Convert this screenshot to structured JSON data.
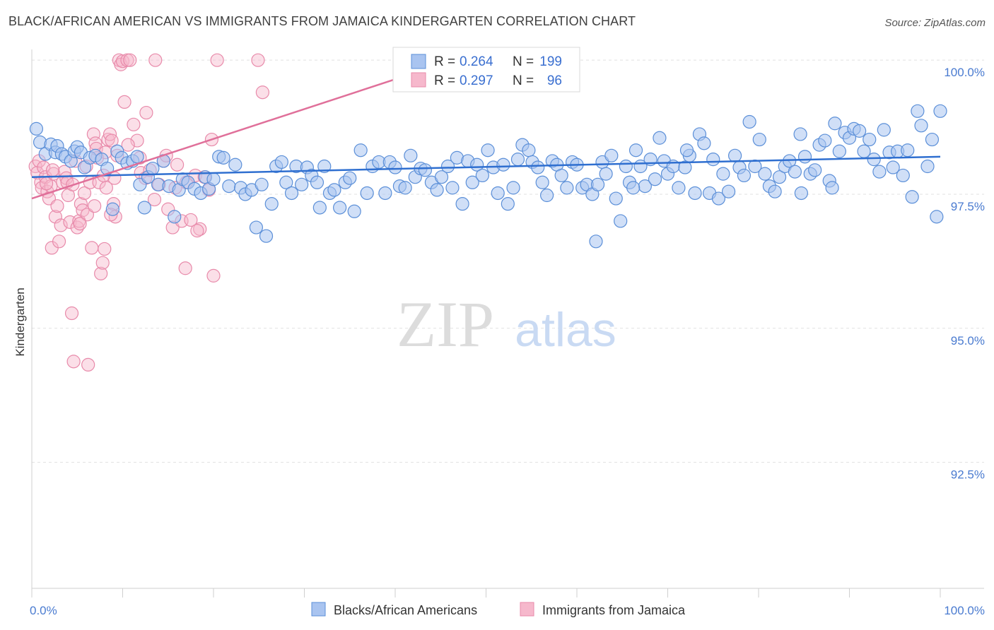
{
  "title": "BLACK/AFRICAN AMERICAN VS IMMIGRANTS FROM JAMAICA KINDERGARTEN CORRELATION CHART",
  "source": "Source: ZipAtlas.com",
  "watermark": {
    "zip": "ZIP",
    "atlas": "atlas"
  },
  "legend": {
    "r_label": "R =",
    "n_label": "N =",
    "rows": [
      {
        "r": "0.264",
        "n": "199"
      },
      {
        "r": "0.297",
        "n": "96"
      }
    ]
  },
  "chart_data": {
    "type": "scatter",
    "title": "BLACK/AFRICAN AMERICAN VS IMMIGRANTS FROM JAMAICA KINDERGARTEN CORRELATION CHART",
    "xlabel": "",
    "ylabel": "Kindergarten",
    "xlim": [
      0,
      100
    ],
    "ylim": [
      90.15,
      100.2
    ],
    "y_ticks": [
      {
        "value": 100.0,
        "label": "100.0%"
      },
      {
        "value": 97.5,
        "label": "97.5%"
      },
      {
        "value": 95.0,
        "label": "95.0%"
      },
      {
        "value": 92.5,
        "label": "92.5%"
      }
    ],
    "x_ticks": [
      {
        "value": 0,
        "label": "0.0%"
      },
      {
        "value": 100,
        "label": "100.0%"
      }
    ],
    "colors": {
      "blue_fill": "#a9c4f0",
      "blue_stroke": "#5b8fd8",
      "blue_line": "#2f6fd0",
      "pink_fill": "#f6b8cc",
      "pink_stroke": "#e88aaa",
      "pink_line": "#e0709a",
      "axis_text": "#4a7bd0",
      "grid": "#e0e0e0"
    },
    "series": [
      {
        "name": "Blacks/African Americans",
        "trend": {
          "x": [
            0,
            100
          ],
          "y": [
            97.82,
            98.2
          ]
        },
        "points": [
          [
            0.5,
            98.72
          ],
          [
            0.9,
            98.47
          ],
          [
            1.5,
            98.25
          ],
          [
            2.1,
            98.43
          ],
          [
            2.6,
            98.28
          ],
          [
            2.8,
            98.4
          ],
          [
            3.3,
            98.25
          ],
          [
            3.7,
            98.2
          ],
          [
            4.3,
            98.12
          ],
          [
            4.7,
            98.3
          ],
          [
            5.0,
            98.38
          ],
          [
            5.4,
            98.28
          ],
          [
            5.8,
            98.0
          ],
          [
            6.4,
            98.18
          ],
          [
            7.0,
            98.22
          ],
          [
            7.7,
            98.15
          ],
          [
            8.3,
            97.98
          ],
          [
            8.9,
            97.22
          ],
          [
            9.4,
            98.3
          ],
          [
            9.9,
            98.18
          ],
          [
            10.5,
            98.08
          ],
          [
            11.1,
            98.12
          ],
          [
            11.6,
            98.2
          ],
          [
            11.9,
            97.68
          ],
          [
            12.4,
            97.25
          ],
          [
            12.8,
            97.82
          ],
          [
            13.3,
            97.98
          ],
          [
            13.9,
            97.68
          ],
          [
            14.5,
            98.12
          ],
          [
            15.1,
            97.65
          ],
          [
            15.7,
            97.08
          ],
          [
            16.2,
            97.58
          ],
          [
            16.6,
            97.78
          ],
          [
            17.2,
            97.72
          ],
          [
            17.9,
            97.6
          ],
          [
            18.6,
            97.52
          ],
          [
            19.1,
            97.82
          ],
          [
            19.5,
            97.6
          ],
          [
            20.0,
            97.78
          ],
          [
            20.6,
            98.2
          ],
          [
            21.1,
            98.18
          ],
          [
            21.7,
            97.65
          ],
          [
            22.4,
            98.05
          ],
          [
            23.0,
            97.62
          ],
          [
            23.5,
            97.5
          ],
          [
            24.2,
            97.58
          ],
          [
            24.7,
            96.88
          ],
          [
            25.3,
            97.68
          ],
          [
            25.8,
            96.72
          ],
          [
            26.4,
            97.32
          ],
          [
            26.9,
            98.02
          ],
          [
            27.5,
            98.1
          ],
          [
            28.0,
            97.72
          ],
          [
            28.6,
            97.52
          ],
          [
            29.1,
            98.02
          ],
          [
            29.7,
            97.68
          ],
          [
            30.3,
            98.0
          ],
          [
            30.8,
            97.85
          ],
          [
            31.4,
            97.72
          ],
          [
            31.7,
            97.25
          ],
          [
            32.2,
            98.02
          ],
          [
            32.8,
            97.52
          ],
          [
            33.3,
            97.58
          ],
          [
            33.9,
            97.25
          ],
          [
            34.5,
            97.72
          ],
          [
            35.0,
            97.8
          ],
          [
            35.5,
            97.18
          ],
          [
            36.2,
            98.32
          ],
          [
            36.9,
            97.52
          ],
          [
            37.5,
            98.02
          ],
          [
            38.2,
            98.1
          ],
          [
            38.9,
            97.52
          ],
          [
            39.4,
            98.1
          ],
          [
            40.0,
            98.0
          ],
          [
            40.5,
            97.65
          ],
          [
            41.1,
            97.62
          ],
          [
            41.7,
            98.22
          ],
          [
            42.2,
            97.82
          ],
          [
            42.8,
            97.98
          ],
          [
            43.3,
            97.95
          ],
          [
            44.0,
            97.72
          ],
          [
            44.6,
            97.58
          ],
          [
            45.1,
            97.82
          ],
          [
            45.8,
            98.02
          ],
          [
            46.3,
            97.62
          ],
          [
            46.8,
            98.18
          ],
          [
            47.4,
            97.32
          ],
          [
            48.0,
            98.12
          ],
          [
            48.5,
            97.72
          ],
          [
            49.0,
            98.05
          ],
          [
            49.6,
            97.85
          ],
          [
            50.2,
            98.32
          ],
          [
            50.8,
            98.0
          ],
          [
            51.3,
            97.52
          ],
          [
            51.9,
            98.05
          ],
          [
            52.4,
            97.32
          ],
          [
            53.0,
            97.62
          ],
          [
            53.5,
            98.15
          ],
          [
            54.0,
            98.42
          ],
          [
            54.7,
            98.32
          ],
          [
            55.1,
            98.1
          ],
          [
            55.7,
            98.0
          ],
          [
            56.2,
            97.72
          ],
          [
            56.7,
            97.48
          ],
          [
            57.3,
            98.12
          ],
          [
            57.8,
            98.05
          ],
          [
            58.3,
            97.85
          ],
          [
            58.9,
            97.62
          ],
          [
            59.5,
            98.1
          ],
          [
            60.0,
            98.05
          ],
          [
            60.6,
            97.62
          ],
          [
            61.1,
            97.68
          ],
          [
            61.7,
            97.5
          ],
          [
            62.3,
            97.68
          ],
          [
            62.8,
            98.1
          ],
          [
            63.2,
            97.88
          ],
          [
            63.8,
            98.22
          ],
          [
            64.3,
            97.42
          ],
          [
            64.8,
            97.0
          ],
          [
            65.4,
            98.02
          ],
          [
            65.8,
            97.72
          ],
          [
            66.5,
            98.32
          ],
          [
            67.0,
            98.02
          ],
          [
            67.5,
            97.65
          ],
          [
            68.1,
            98.15
          ],
          [
            68.6,
            97.78
          ],
          [
            69.1,
            98.55
          ],
          [
            69.6,
            98.12
          ],
          [
            70.0,
            97.88
          ],
          [
            70.6,
            98.02
          ],
          [
            71.2,
            97.62
          ],
          [
            71.9,
            98.0
          ],
          [
            72.4,
            98.22
          ],
          [
            73.0,
            97.52
          ],
          [
            73.5,
            98.62
          ],
          [
            74.0,
            98.45
          ],
          [
            74.6,
            97.52
          ],
          [
            75.0,
            98.15
          ],
          [
            75.6,
            97.42
          ],
          [
            76.1,
            97.88
          ],
          [
            76.7,
            97.55
          ],
          [
            77.4,
            98.22
          ],
          [
            77.9,
            98.0
          ],
          [
            78.4,
            97.85
          ],
          [
            79.0,
            98.85
          ],
          [
            79.6,
            98.02
          ],
          [
            80.1,
            98.52
          ],
          [
            80.7,
            97.88
          ],
          [
            81.2,
            97.65
          ],
          [
            81.8,
            97.55
          ],
          [
            82.3,
            97.82
          ],
          [
            82.9,
            98.02
          ],
          [
            83.4,
            98.12
          ],
          [
            84.0,
            97.92
          ],
          [
            84.6,
            98.62
          ],
          [
            85.1,
            98.2
          ],
          [
            85.7,
            97.88
          ],
          [
            86.2,
            97.95
          ],
          [
            86.7,
            98.42
          ],
          [
            87.3,
            98.5
          ],
          [
            87.8,
            97.75
          ],
          [
            88.4,
            98.82
          ],
          [
            88.9,
            98.3
          ],
          [
            89.5,
            98.65
          ],
          [
            90.0,
            98.55
          ],
          [
            90.5,
            98.72
          ],
          [
            91.1,
            98.68
          ],
          [
            91.6,
            98.3
          ],
          [
            92.2,
            98.52
          ],
          [
            92.7,
            98.15
          ],
          [
            93.3,
            97.92
          ],
          [
            93.8,
            98.7
          ],
          [
            94.4,
            98.28
          ],
          [
            94.8,
            98.0
          ],
          [
            95.3,
            98.3
          ],
          [
            95.9,
            97.85
          ],
          [
            96.4,
            98.32
          ],
          [
            96.9,
            97.45
          ],
          [
            97.5,
            99.05
          ],
          [
            97.9,
            98.78
          ],
          [
            98.6,
            98.02
          ],
          [
            99.1,
            98.52
          ],
          [
            99.6,
            97.08
          ],
          [
            100.0,
            99.05
          ],
          [
            88.1,
            97.62
          ],
          [
            84.7,
            97.52
          ],
          [
            72.1,
            98.32
          ],
          [
            66.2,
            97.62
          ],
          [
            62.1,
            96.62
          ]
        ]
      },
      {
        "name": "Immigrants from Jamaica",
        "trend": {
          "x": [
            0,
            50
          ],
          "y": [
            97.42,
            100.2
          ]
        },
        "points": [
          [
            0.4,
            98.02
          ],
          [
            0.6,
            97.9
          ],
          [
            0.8,
            98.12
          ],
          [
            1.0,
            97.72
          ],
          [
            1.1,
            97.62
          ],
          [
            1.3,
            98.0
          ],
          [
            1.5,
            97.82
          ],
          [
            1.7,
            97.55
          ],
          [
            1.9,
            97.42
          ],
          [
            2.1,
            97.65
          ],
          [
            2.2,
            96.5
          ],
          [
            2.4,
            97.88
          ],
          [
            2.6,
            97.08
          ],
          [
            2.8,
            97.28
          ],
          [
            3.0,
            96.62
          ],
          [
            3.2,
            96.92
          ],
          [
            3.4,
            97.72
          ],
          [
            3.6,
            97.92
          ],
          [
            3.8,
            97.8
          ],
          [
            4.0,
            97.48
          ],
          [
            4.2,
            96.98
          ],
          [
            4.4,
            95.28
          ],
          [
            4.6,
            94.38
          ],
          [
            4.8,
            98.12
          ],
          [
            5.0,
            96.88
          ],
          [
            5.2,
            97.0
          ],
          [
            5.4,
            97.32
          ],
          [
            5.6,
            97.2
          ],
          [
            5.8,
            97.52
          ],
          [
            6.0,
            98.02
          ],
          [
            6.2,
            94.32
          ],
          [
            6.4,
            97.72
          ],
          [
            6.6,
            96.5
          ],
          [
            6.8,
            98.62
          ],
          [
            7.0,
            98.45
          ],
          [
            7.2,
            98.18
          ],
          [
            7.4,
            97.72
          ],
          [
            7.6,
            96.02
          ],
          [
            7.8,
            96.22
          ],
          [
            8.0,
            96.48
          ],
          [
            8.2,
            97.62
          ],
          [
            8.4,
            98.52
          ],
          [
            8.6,
            98.62
          ],
          [
            8.8,
            98.5
          ],
          [
            9.0,
            97.32
          ],
          [
            9.2,
            97.08
          ],
          [
            9.4,
            98.22
          ],
          [
            9.6,
            100.0
          ],
          [
            9.8,
            99.92
          ],
          [
            10.0,
            99.98
          ],
          [
            10.2,
            99.22
          ],
          [
            10.5,
            100.0
          ],
          [
            10.8,
            100.0
          ],
          [
            11.2,
            98.8
          ],
          [
            11.6,
            98.5
          ],
          [
            12.0,
            97.9
          ],
          [
            12.5,
            97.8
          ],
          [
            13.0,
            97.95
          ],
          [
            13.5,
            97.4
          ],
          [
            14.0,
            97.68
          ],
          [
            14.5,
            98.12
          ],
          [
            15.0,
            97.22
          ],
          [
            15.5,
            96.88
          ],
          [
            16.0,
            98.05
          ],
          [
            16.5,
            97.0
          ],
          [
            17.0,
            97.72
          ],
          [
            17.5,
            97.02
          ],
          [
            18.0,
            97.85
          ],
          [
            18.5,
            96.85
          ],
          [
            19.0,
            97.82
          ],
          [
            19.5,
            97.58
          ],
          [
            20.0,
            95.98
          ],
          [
            6.1,
            97.12
          ],
          [
            7.1,
            98.35
          ],
          [
            8.1,
            98.28
          ],
          [
            9.1,
            97.8
          ],
          [
            10.6,
            98.42
          ],
          [
            11.9,
            98.18
          ],
          [
            12.6,
            99.02
          ],
          [
            13.6,
            100.0
          ],
          [
            14.8,
            98.22
          ],
          [
            15.8,
            97.62
          ],
          [
            16.9,
            96.12
          ],
          [
            18.2,
            96.82
          ],
          [
            19.8,
            98.52
          ],
          [
            20.4,
            100.0
          ],
          [
            24.9,
            100.0
          ],
          [
            25.4,
            99.4
          ],
          [
            3.9,
            97.72
          ],
          [
            5.3,
            96.95
          ],
          [
            6.9,
            97.28
          ],
          [
            8.7,
            97.12
          ],
          [
            1.6,
            97.7
          ],
          [
            2.3,
            97.95
          ],
          [
            4.5,
            97.68
          ],
          [
            7.9,
            97.85
          ]
        ]
      }
    ]
  },
  "bottom_legend": [
    "Blacks/African Americans",
    "Immigrants from Jamaica"
  ]
}
